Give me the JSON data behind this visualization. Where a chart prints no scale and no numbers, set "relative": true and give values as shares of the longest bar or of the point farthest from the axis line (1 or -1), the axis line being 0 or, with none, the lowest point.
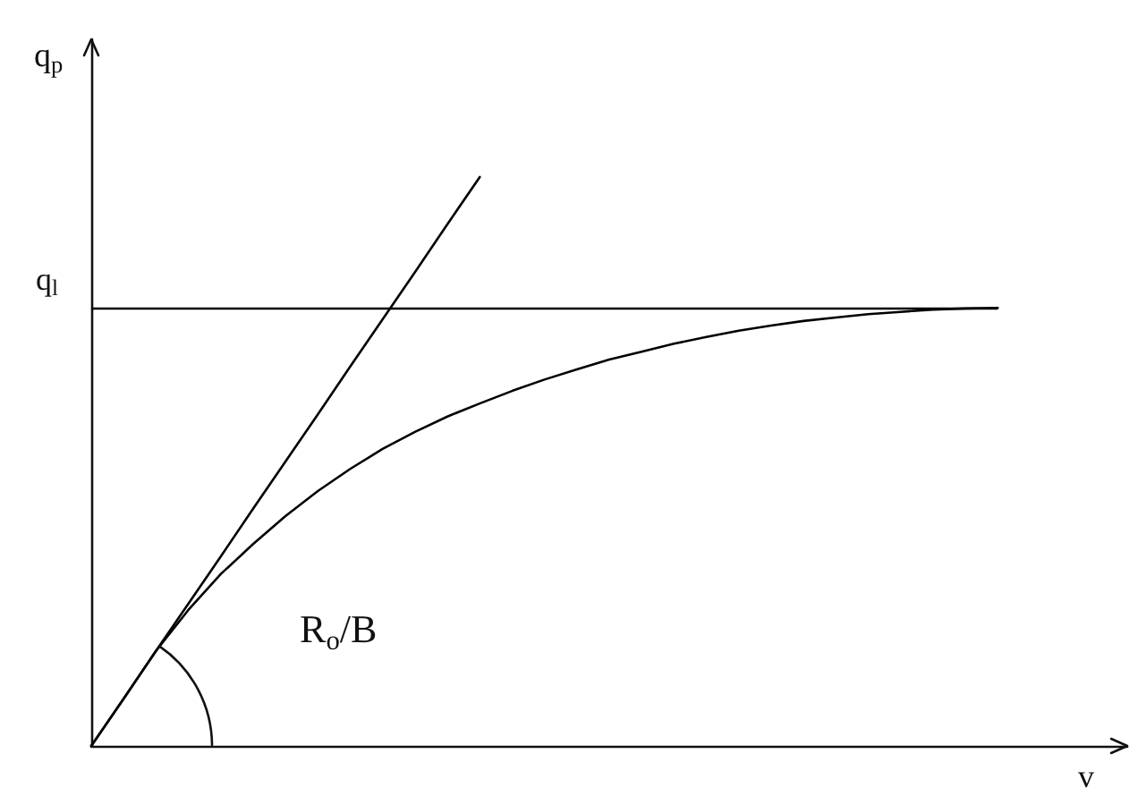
{
  "chart_data": {
    "type": "line",
    "xlabel": "v",
    "ylabel": "q$_{p}$",
    "annotations": [
      "R$_{o}$/B"
    ],
    "categories": [
      null,
      null,
      null,
      null,
      null,
      null,
      null,
      null,
      null,
      null,
      null,
      null,
      null,
      null,
      null,
      null,
      null,
      null,
      null,
      null,
      null,
      null,
      null,
      null,
      null,
      null,
      null,
      null,
      null,
      null,
      null,
      null,
      null
    ],
    "relative": true,
    "series": [
      {
        "color": "#000000",
        "values": [
          0,
          0.083,
          0.167,
          0.25,
          0.333,
          0.417,
          0.5,
          0.583,
          0.667,
          0.75,
          0.833,
          0.917,
          1,
          null,
          null,
          null,
          null,
          null,
          null,
          null,
          null,
          null,
          null,
          null,
          null,
          null,
          null,
          null,
          null,
          null,
          null,
          null,
          null
        ]
      },
      {
        "color": "#000000",
        "values": [
          0,
          0.083,
          0.167,
          0.239,
          0.302,
          0.355,
          0.404,
          0.448,
          0.487,
          0.522,
          0.552,
          0.579,
          0.602,
          0.624,
          0.644,
          0.662,
          0.679,
          0.693,
          0.707,
          0.719,
          0.73,
          0.739,
          0.747,
          0.753,
          0.759,
          0.763,
          0.767,
          0.769,
          0.77,
          null,
          null,
          null,
          null
        ]
      }
    ],
    "ref_lines": [
      {
        "axis": "y",
        "value": 0.77,
        "label": "q$_{l}$",
        "color": "#000000"
      }
    ],
    "grid": false,
    "marker": "none",
    "line_style": "solid"
  }
}
